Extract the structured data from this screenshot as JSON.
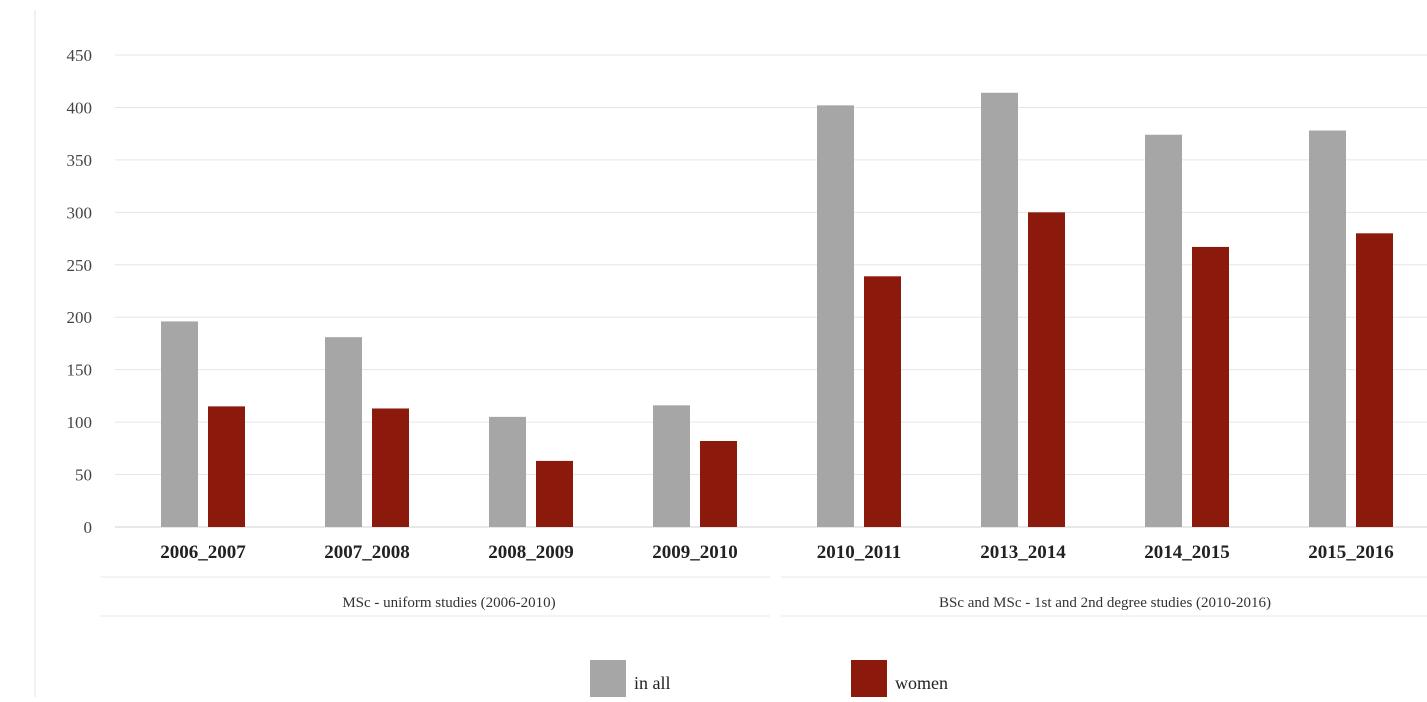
{
  "chart_data": {
    "type": "bar",
    "categories": [
      "2006_2007",
      "2007_2008",
      "2008_2009",
      "2009_2010",
      "2010_2011",
      "2013_2014",
      "2014_2015",
      "2015_2016"
    ],
    "series": [
      {
        "name": "in all",
        "color": "#a6a6a6",
        "values": [
          196,
          181,
          105,
          116,
          402,
          414,
          374,
          378
        ]
      },
      {
        "name": "women",
        "color": "#8b1a0d",
        "values": [
          115,
          113,
          63,
          82,
          239,
          300,
          267,
          280
        ]
      }
    ],
    "ylim": [
      0,
      450
    ],
    "yticks": [
      0,
      50,
      100,
      150,
      200,
      250,
      300,
      350,
      400,
      450
    ],
    "grid": true,
    "legend_position": "bottom",
    "groups": [
      {
        "label": "MSc - uniform studies (2006-2010)",
        "categories": [
          "2006_2007",
          "2007_2008",
          "2008_2009",
          "2009_2010"
        ]
      },
      {
        "label": "BSc and MSc - 1st and 2nd degree studies (2010-2016)",
        "categories": [
          "2010_2011",
          "2013_2014",
          "2014_2015",
          "2015_2016"
        ]
      }
    ]
  }
}
